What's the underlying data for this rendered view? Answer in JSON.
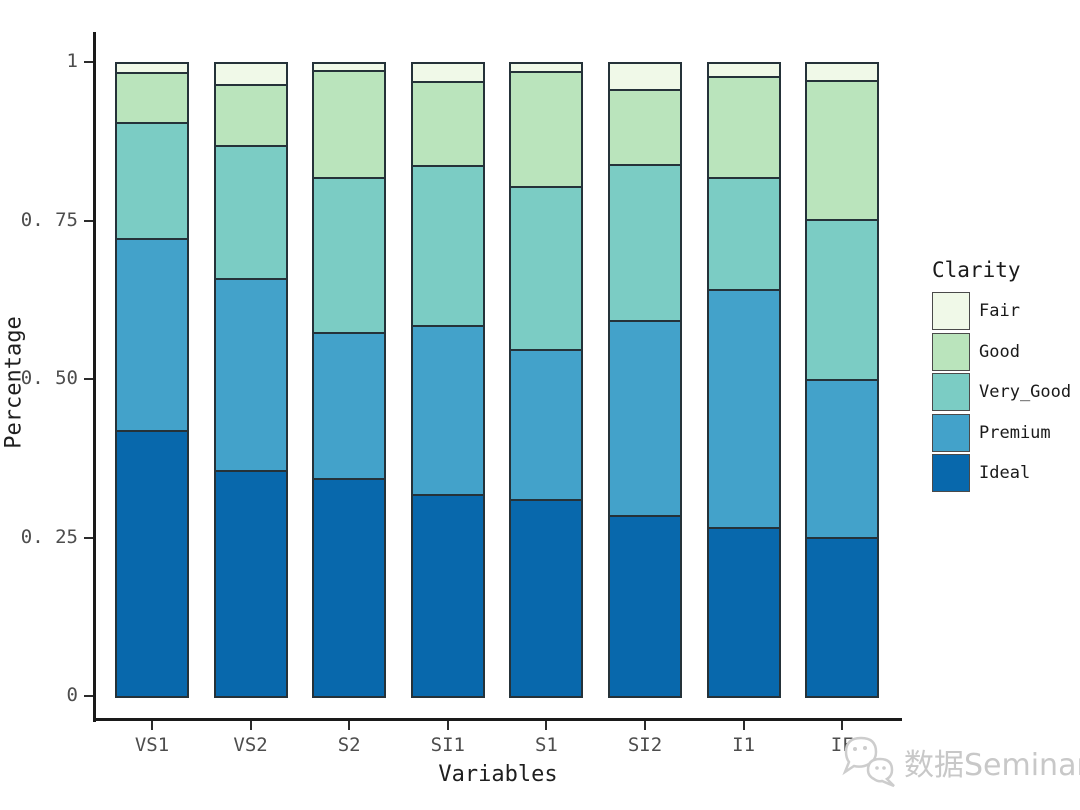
{
  "chart_data": {
    "type": "bar",
    "stacked": true,
    "normalized": true,
    "title": "",
    "xlabel": "Variables",
    "ylabel": "Percentage",
    "categories": [
      "VS1",
      "VS2",
      "S2",
      "SI1",
      "S1",
      "SI2",
      "I1",
      "IF"
    ],
    "series_bottom_to_top": [
      {
        "name": "Ideal",
        "color": "#0868ac",
        "values": [
          0.42,
          0.356,
          0.343,
          0.318,
          0.311,
          0.286,
          0.266,
          0.25
        ]
      },
      {
        "name": "Premium",
        "color": "#43a2ca",
        "values": [
          0.303,
          0.304,
          0.231,
          0.267,
          0.236,
          0.307,
          0.376,
          0.25
        ]
      },
      {
        "name": "Very_Good",
        "color": "#7bccc4",
        "values": [
          0.182,
          0.209,
          0.245,
          0.253,
          0.258,
          0.246,
          0.176,
          0.253
        ]
      },
      {
        "name": "Good",
        "color": "#bae4bc",
        "values": [
          0.08,
          0.097,
          0.168,
          0.132,
          0.181,
          0.118,
          0.16,
          0.218
        ]
      },
      {
        "name": "Fair",
        "color": "#f0f9e8",
        "values": [
          0.015,
          0.034,
          0.013,
          0.03,
          0.014,
          0.043,
          0.022,
          0.029
        ]
      }
    ],
    "y_ticks": [
      {
        "label": "0",
        "value": 0
      },
      {
        "label": "0. 25",
        "value": 0.25
      },
      {
        "label": "0. 50",
        "value": 0.5
      },
      {
        "label": "0. 75",
        "value": 0.75
      },
      {
        "label": "1",
        "value": 1
      }
    ],
    "ylim": [
      0,
      1
    ],
    "grid": false,
    "bar_outline_color": "#253239",
    "axis_color": "#1a1a1a",
    "legend": {
      "title": "Clarity",
      "position": "right",
      "items_top_to_bottom": [
        "Fair",
        "Good",
        "Very_Good",
        "Premium",
        "Ideal"
      ]
    }
  },
  "watermark": {
    "text": "数据Seminar",
    "icon": "wechat-chat-bubbles-icon",
    "color": "#c8c8c8"
  }
}
